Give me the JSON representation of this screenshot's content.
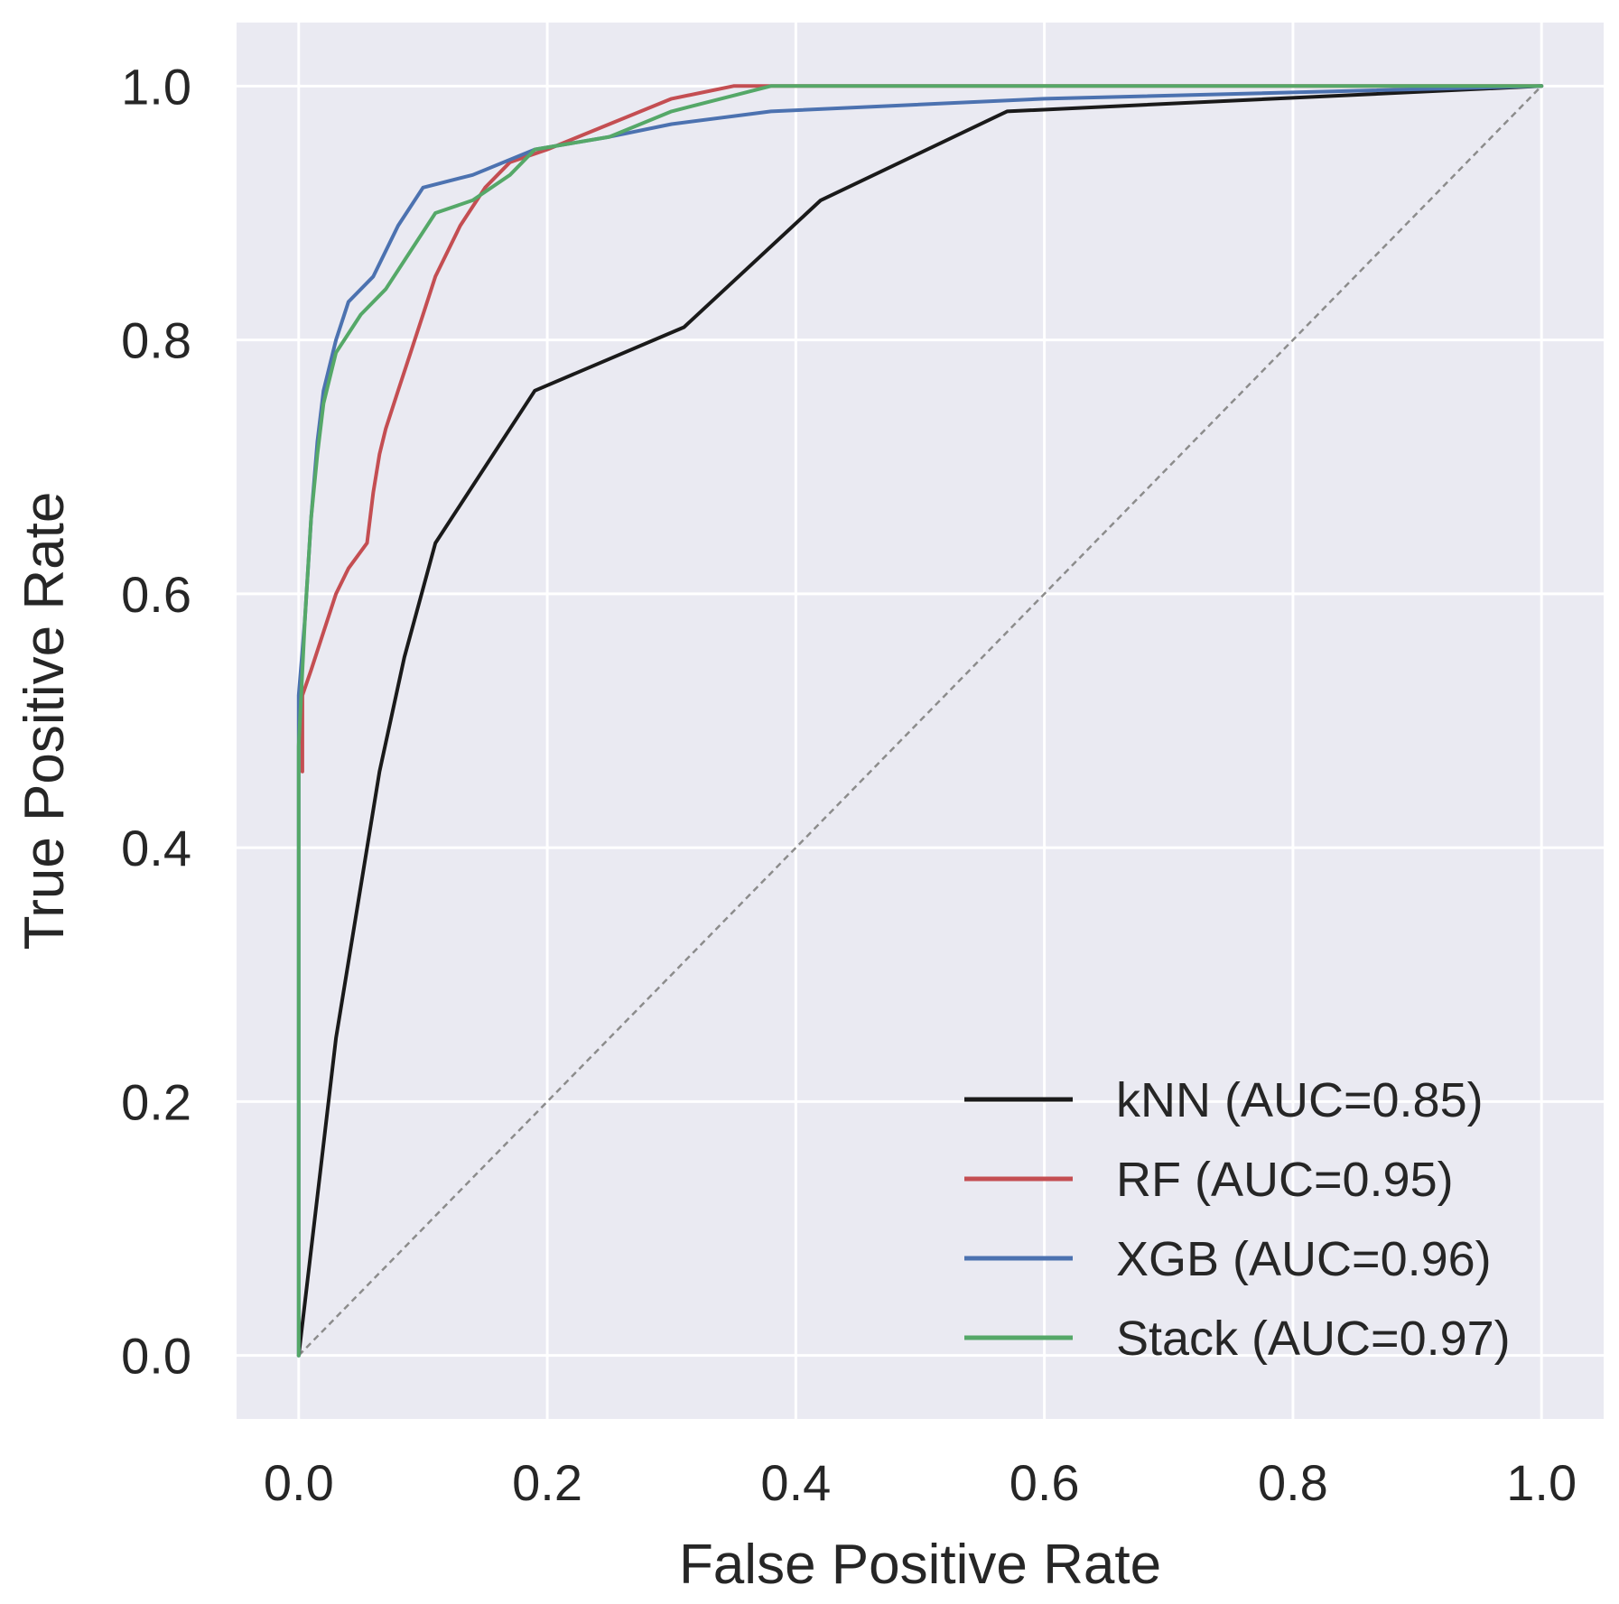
{
  "chart_data": {
    "type": "line",
    "title": "",
    "xlabel": "False Positive Rate",
    "ylabel": "True Positive Rate",
    "xlim": [
      -0.05,
      1.05
    ],
    "ylim": [
      -0.05,
      1.05
    ],
    "xticks": [
      0.0,
      0.2,
      0.4,
      0.6,
      0.8,
      1.0
    ],
    "yticks": [
      0.0,
      0.2,
      0.4,
      0.6,
      0.8,
      1.0
    ],
    "xtick_labels": [
      "0.0",
      "0.2",
      "0.4",
      "0.6",
      "0.8",
      "1.0"
    ],
    "ytick_labels": [
      "0.0",
      "0.2",
      "0.4",
      "0.6",
      "0.8",
      "1.0"
    ],
    "grid": true,
    "background": "#eaeaf2",
    "legend_position": "bottom-right",
    "series": [
      {
        "name": "kNN (AUC=0.85)",
        "color": "#1a1a1a",
        "x": [
          0.0,
          0.03,
          0.065,
          0.085,
          0.11,
          0.19,
          0.31,
          0.42,
          0.57,
          1.0
        ],
        "y": [
          0.0,
          0.25,
          0.46,
          0.55,
          0.64,
          0.76,
          0.81,
          0.91,
          0.98,
          1.0
        ]
      },
      {
        "name": "RF (AUC=0.95)",
        "color": "#c44e52",
        "x": [
          0.003,
          0.003,
          0.01,
          0.02,
          0.03,
          0.04,
          0.055,
          0.06,
          0.065,
          0.07,
          0.08,
          0.09,
          0.1,
          0.11,
          0.13,
          0.15,
          0.17,
          0.2,
          0.25,
          0.3,
          0.35,
          1.0
        ],
        "y": [
          0.46,
          0.52,
          0.54,
          0.57,
          0.6,
          0.62,
          0.64,
          0.68,
          0.71,
          0.73,
          0.76,
          0.79,
          0.82,
          0.85,
          0.89,
          0.92,
          0.94,
          0.95,
          0.97,
          0.99,
          1.0,
          1.0
        ]
      },
      {
        "name": "XGB (AUC=0.96)",
        "color": "#4c72b0",
        "x": [
          0.0,
          0.0,
          0.005,
          0.01,
          0.015,
          0.02,
          0.03,
          0.04,
          0.06,
          0.08,
          0.1,
          0.14,
          0.19,
          0.25,
          0.3,
          0.38,
          0.6,
          1.0
        ],
        "y": [
          0.0,
          0.52,
          0.58,
          0.66,
          0.72,
          0.76,
          0.8,
          0.83,
          0.85,
          0.89,
          0.92,
          0.93,
          0.95,
          0.96,
          0.97,
          0.98,
          0.99,
          1.0
        ]
      },
      {
        "name": "Stack (AUC=0.97)",
        "color": "#55a868",
        "x": [
          0.0,
          0.0,
          0.005,
          0.01,
          0.015,
          0.02,
          0.03,
          0.05,
          0.07,
          0.09,
          0.11,
          0.14,
          0.17,
          0.19,
          0.25,
          0.3,
          0.38,
          1.0
        ],
        "y": [
          0.0,
          0.48,
          0.58,
          0.66,
          0.71,
          0.75,
          0.79,
          0.82,
          0.84,
          0.87,
          0.9,
          0.91,
          0.93,
          0.95,
          0.96,
          0.98,
          1.0,
          1.0
        ]
      }
    ],
    "diagonal": {
      "x": [
        0.0,
        1.0
      ],
      "y": [
        0.0,
        1.0
      ],
      "color": "#8c8c8c",
      "style": "dashed"
    }
  }
}
